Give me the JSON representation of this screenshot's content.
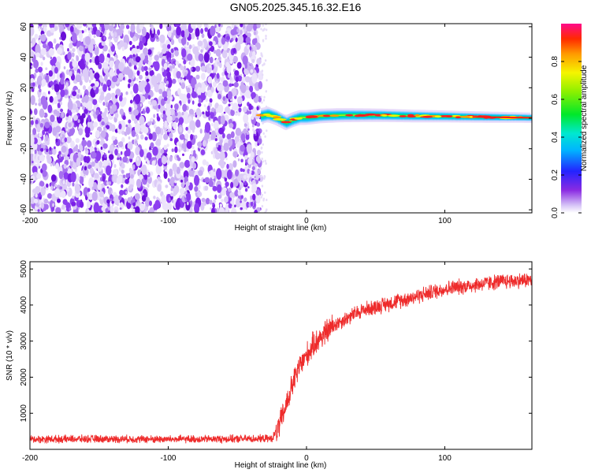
{
  "title": "GN05.2025.345.16.32.E16",
  "chart_data": [
    {
      "type": "heatmap",
      "xlabel": "Height of straight line (km)",
      "ylabel": "Frequency (Hz)",
      "xlim": [
        -200,
        163
      ],
      "ylim": [
        -62,
        62
      ],
      "xticks": [
        -200,
        -100,
        0,
        100
      ],
      "yticks": [
        -60,
        -40,
        -20,
        0,
        20,
        40,
        60
      ],
      "noise_region_x": [
        -200,
        -33
      ],
      "signal_trace": {
        "x": [
          -33,
          -28,
          -22,
          -18,
          -15,
          -10,
          -5,
          0,
          10,
          25,
          50,
          75,
          100,
          125,
          150,
          163
        ],
        "freq": [
          1.5,
          2.5,
          0.5,
          -1.5,
          -3.0,
          -1.0,
          0.5,
          0.5,
          1.5,
          2.0,
          2.0,
          1.5,
          1.2,
          0.8,
          0.5,
          0.3
        ]
      },
      "colorbar": {
        "label": "Normalized spectral amplitude",
        "ticks": [
          "0.0",
          "0.2",
          "0.4",
          "0.6",
          "0.8"
        ],
        "range": [
          0,
          1
        ]
      }
    },
    {
      "type": "line",
      "color": "#ee2b2b",
      "xlabel": "Height of straight line (km)",
      "ylabel": "SNR (10 * v/v)",
      "xlim": [
        -200,
        163
      ],
      "ylim": [
        0,
        5200
      ],
      "xticks": [
        -200,
        -100,
        0,
        100
      ],
      "yticks": [
        1000,
        2000,
        3000,
        4000,
        5000
      ],
      "series": [
        {
          "name": "SNR",
          "x": [
            -200,
            -150,
            -100,
            -50,
            -25,
            -20,
            -15,
            -10,
            -5,
            0,
            5,
            10,
            20,
            30,
            40,
            50,
            60,
            80,
            100,
            120,
            140,
            163
          ],
          "y": [
            280,
            290,
            280,
            290,
            300,
            600,
            1200,
            1800,
            2300,
            2600,
            2900,
            3100,
            3450,
            3650,
            3850,
            3950,
            4050,
            4250,
            4450,
            4550,
            4650,
            4700
          ]
        }
      ]
    }
  ]
}
